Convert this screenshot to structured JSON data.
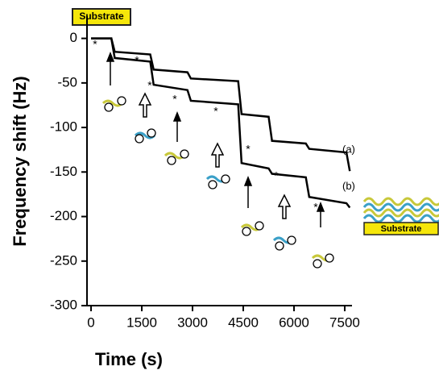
{
  "chart_data": {
    "type": "line",
    "x_label": "Time (s)",
    "y_label": "Frequency shift (Hz)",
    "x": [
      0,
      600,
      700,
      1750,
      1850,
      2850,
      2950,
      4350,
      4450,
      5250,
      5350,
      6350,
      6450,
      7550,
      7650
    ],
    "series": [
      {
        "name": "(a)",
        "color": "#000000",
        "values": [
          0,
          0,
          -15,
          -18,
          -35,
          -38,
          -45,
          -48,
          -85,
          -88,
          -115,
          -118,
          -124,
          -128,
          -149
        ]
      },
      {
        "name": "(b)",
        "color": "#000000",
        "values": [
          0,
          0,
          -22,
          -26,
          -52,
          -58,
          -70,
          -74,
          -140,
          -146,
          -152,
          -156,
          -178,
          -185,
          -190
        ]
      }
    ],
    "xlim": [
      -120,
      7715
    ],
    "xticks": [
      0,
      1500,
      3000,
      4500,
      6000,
      7500
    ],
    "ylim": [
      -300,
      25
    ],
    "yticks": [
      0,
      -50,
      -100,
      -150,
      -200,
      -250,
      -300
    ],
    "substrate_labels": [
      "Substrate",
      "Substrate"
    ],
    "asterisks": [
      "*",
      "*",
      "*",
      "*",
      "*",
      "*",
      "*",
      "*"
    ]
  }
}
